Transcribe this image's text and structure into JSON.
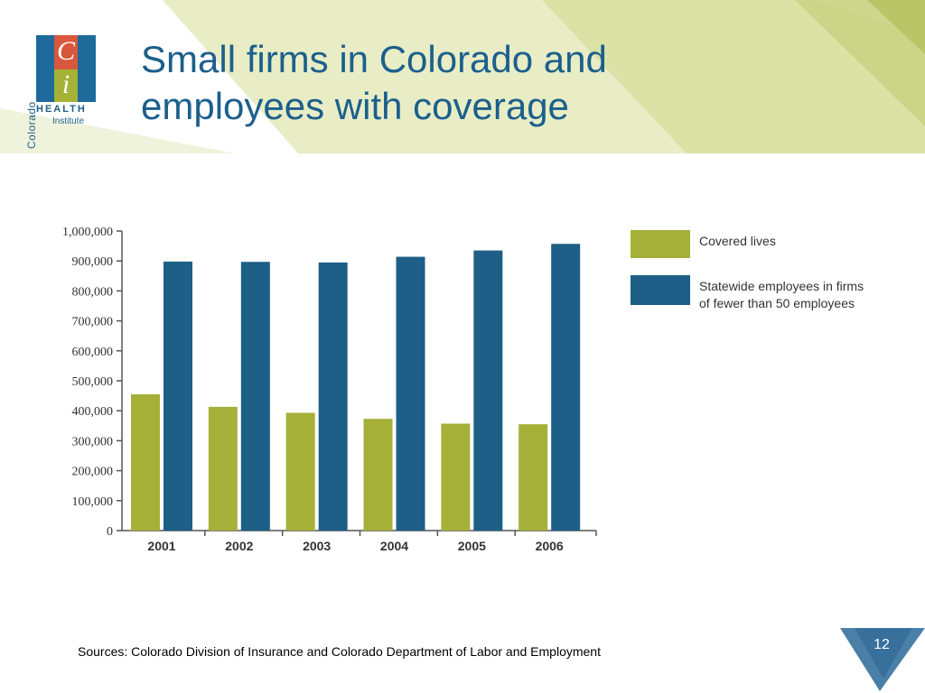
{
  "slide": {
    "title_line1": "Small firms in Colorado and",
    "title_line2": "employees with coverage",
    "source": "Sources:  Colorado Division of Insurance and Colorado Department of Labor and Employment",
    "page_number": "12"
  },
  "logo": {
    "vertical_text": "Colorado",
    "letter_c": "C",
    "letter_i": "i",
    "health": "HEALTH",
    "institute": "Institute"
  },
  "colors": {
    "title": "#1c5f8c",
    "covered": "#a5b038",
    "statewide": "#1d5f87",
    "header_green": "#d8e0a6",
    "corner_blue": "#4a7fa8"
  },
  "chart_data": {
    "type": "bar",
    "categories": [
      "2001",
      "2002",
      "2003",
      "2004",
      "2005",
      "2006"
    ],
    "series": [
      {
        "name": "Covered lives",
        "values": [
          455000,
          413000,
          393000,
          373000,
          357000,
          355000
        ]
      },
      {
        "name": "Statewide employees in firms of fewer than 50 employees",
        "values": [
          898000,
          897000,
          895000,
          914000,
          935000,
          957000
        ]
      }
    ],
    "ylim": [
      0,
      1000000
    ],
    "yticks": [
      0,
      100000,
      200000,
      300000,
      400000,
      500000,
      600000,
      700000,
      800000,
      900000,
      1000000
    ],
    "ytick_labels": [
      "0",
      "100,000",
      "200,000",
      "300,000",
      "400,000",
      "500,000",
      "600,000",
      "700,000",
      "800,000",
      "900,000",
      "1,000,000"
    ],
    "legend_position": "top-right",
    "title": "",
    "xlabel": "",
    "ylabel": ""
  }
}
